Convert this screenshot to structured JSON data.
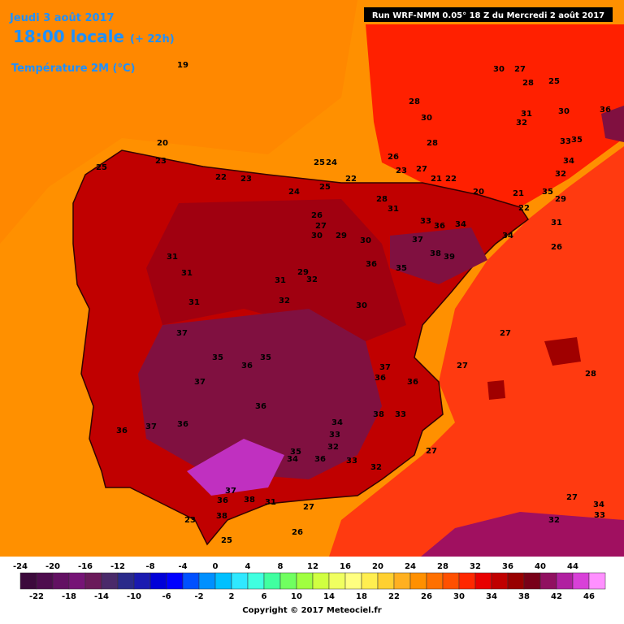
{
  "header": {
    "date": "Jeudi 3 août 2017",
    "time": "18:00 locale",
    "lead": "(+ 22h)",
    "field": "Température 2M (°C)",
    "run": "Run WRF-NMM 0.05° 18 Z du Mercredi 2 août 2017"
  },
  "scale": {
    "upper_labels": [
      "-24",
      "-20",
      "-16",
      "-12",
      "-8",
      "-4",
      "0",
      "4",
      "8",
      "12",
      "16",
      "20",
      "24",
      "28",
      "32",
      "36",
      "40",
      "44"
    ],
    "lower_labels": [
      "-22",
      "-18",
      "-14",
      "-10",
      "-6",
      "-2",
      "2",
      "6",
      "10",
      "14",
      "18",
      "22",
      "26",
      "30",
      "34",
      "38",
      "42",
      "46"
    ],
    "colors": [
      "#3c0a3c",
      "#4e0c4e",
      "#621062",
      "#761476",
      "#6a1a5a",
      "#4a2a6a",
      "#2a2a8a",
      "#1a1ab0",
      "#0000d8",
      "#0000ff",
      "#0050ff",
      "#0090ff",
      "#00c0ff",
      "#30e8ff",
      "#40ffe0",
      "#40ffa0",
      "#70ff60",
      "#a0ff40",
      "#d0ff40",
      "#f0ff60",
      "#ffff80",
      "#ffee50",
      "#ffd030",
      "#ffb020",
      "#ff9000",
      "#ff7000",
      "#ff5000",
      "#ff2800",
      "#e80000",
      "#c00000",
      "#980000",
      "#780018",
      "#901060",
      "#b020a0",
      "#d840d8",
      "#ff90ff"
    ]
  },
  "map_labels": [
    "19",
    "20",
    "23",
    "25",
    "22",
    "23",
    "25",
    "24",
    "22",
    "24",
    "25",
    "28",
    "31",
    "26",
    "27",
    "30",
    "29",
    "30",
    "37",
    "38",
    "39",
    "33",
    "36",
    "34",
    "34",
    "26",
    "31",
    "31",
    "29",
    "32",
    "36",
    "35",
    "31",
    "32",
    "31",
    "30",
    "27",
    "27",
    "28",
    "37",
    "35",
    "36",
    "35",
    "37",
    "37",
    "36",
    "36",
    "36",
    "38",
    "33",
    "36",
    "37",
    "36",
    "34",
    "33",
    "32",
    "35",
    "34",
    "36",
    "33",
    "32",
    "37",
    "36",
    "38",
    "31",
    "27",
    "38",
    "23",
    "25",
    "26",
    "27",
    "27",
    "34",
    "32",
    "33",
    "30",
    "27",
    "28",
    "25",
    "28",
    "30",
    "31",
    "32",
    "28",
    "30",
    "36",
    "33",
    "35",
    "34",
    "32",
    "26",
    "23",
    "27",
    "21",
    "22",
    "20",
    "21",
    "35",
    "29",
    "22",
    "31"
  ],
  "copyright": "Copyright © 2017 Meteociel.fr"
}
